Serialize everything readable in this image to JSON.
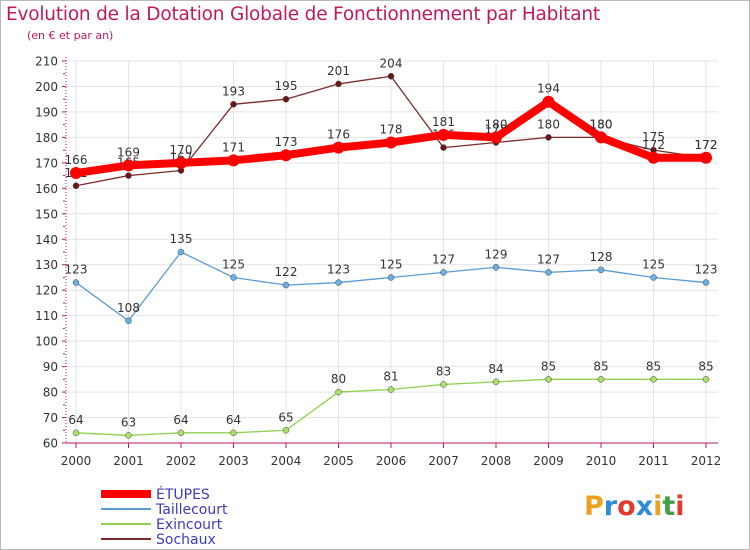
{
  "title": "Evolution de la Dotation Globale de Fonctionnement par Habitant",
  "subtitle": "(en € et par an)",
  "logo": {
    "text": "Proxiti",
    "letter_colors": [
      "#f0a020",
      "#2e8bd8",
      "#e03a2e",
      "#2e8bd8",
      "#f0a020",
      "#43a047",
      "#e03a2e"
    ]
  },
  "chart_data": {
    "type": "line",
    "title": "Evolution de la Dotation Globale de Fonctionnement par Habitant",
    "subtitle": "(en € et par an)",
    "xlabel": "",
    "ylabel": "",
    "ylim": [
      60,
      210
    ],
    "y_tick_step": 10,
    "grid": true,
    "legend_position": "bottom-left",
    "x": [
      "2000",
      "2001",
      "2002",
      "2003",
      "2004",
      "2005",
      "2006",
      "2007",
      "2008",
      "2009",
      "2010",
      "2011",
      "2012"
    ],
    "y_ticks": [
      "60",
      "70",
      "80",
      "90",
      "100",
      "110",
      "120",
      "130",
      "140",
      "150",
      "160",
      "170",
      "180",
      "190",
      "200",
      "210"
    ],
    "series": [
      {
        "name": "Taillecourt",
        "color": "#5b9bd5",
        "marker": "#6ab0e6",
        "values": [
          123,
          108,
          135,
          125,
          122,
          123,
          125,
          127,
          129,
          127,
          128,
          125,
          123
        ]
      },
      {
        "name": "Exincourt",
        "color": "#92d050",
        "marker": "#a8e06a",
        "values": [
          64,
          63,
          64,
          64,
          65,
          80,
          81,
          83,
          84,
          85,
          85,
          85,
          85
        ]
      },
      {
        "name": "Sochaux",
        "color": "#7b2b2b",
        "marker": "#6b1616",
        "values": [
          161,
          165,
          167,
          193,
          195,
          201,
          204,
          176,
          178,
          180,
          180,
          175,
          172
        ]
      },
      {
        "name": "ÉTUPES",
        "color": "#ff0000",
        "marker": "#ff0000",
        "values": [
          166,
          169,
          170,
          171,
          173,
          176,
          178,
          181,
          180,
          194,
          180,
          172,
          172
        ]
      }
    ]
  }
}
